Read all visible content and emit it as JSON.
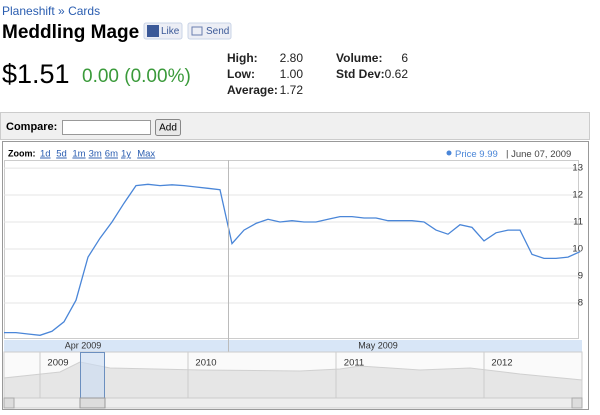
{
  "breadcrumb": {
    "parent": "Planeshift",
    "separator": "»",
    "child": "Cards"
  },
  "title": "Meddling Mage",
  "buttons": [
    "Like",
    "Send"
  ],
  "price": "$1.51",
  "change": "0.00 (0.00%)",
  "stats": [
    {
      "label": "High:",
      "value": "2.80"
    },
    {
      "label": "Low:",
      "value": "1.00"
    },
    {
      "label": "Average:",
      "value": "1.72"
    },
    {
      "label": "Volume:",
      "value": "6"
    },
    {
      "label": "Std Dev:",
      "value": "0.62"
    }
  ],
  "compare": {
    "label": "Compare:",
    "button": "Add"
  },
  "zoom": {
    "label": "Zoom:",
    "options": [
      "1d",
      "5d",
      "1m",
      "3m",
      "6m",
      "1y",
      "Max"
    ]
  },
  "chart_data": {
    "type": "line",
    "series": [
      {
        "name": "Price",
        "color": "#4a86d8",
        "values": [
          6.9,
          6.9,
          6.85,
          6.8,
          6.95,
          7.3,
          8.1,
          9.7,
          10.4,
          11.0,
          11.7,
          12.35,
          12.4,
          12.35,
          12.38,
          12.35,
          12.3,
          12.25,
          12.2,
          10.2,
          10.7,
          10.95,
          11.1,
          11.0,
          11.05,
          11.0,
          11.0,
          11.1,
          11.2,
          11.2,
          11.15,
          11.15,
          11.05,
          11.05,
          11.05,
          11.0,
          10.7,
          10.55,
          10.9,
          10.8,
          10.3,
          10.6,
          10.7,
          10.7,
          9.8,
          9.65,
          9.65,
          9.7,
          9.9
        ]
      }
    ],
    "legend_value": 9.99,
    "legend_date": "June 07, 2009",
    "x_labels": [
      "Apr 2009",
      "May 2009"
    ],
    "ylim": [
      6.7,
      13.3
    ],
    "yticks": [
      8,
      9,
      10,
      11,
      12,
      13
    ],
    "grid": true
  },
  "navigator": {
    "years": [
      "2009",
      "2010",
      "2011",
      "2012"
    ]
  }
}
